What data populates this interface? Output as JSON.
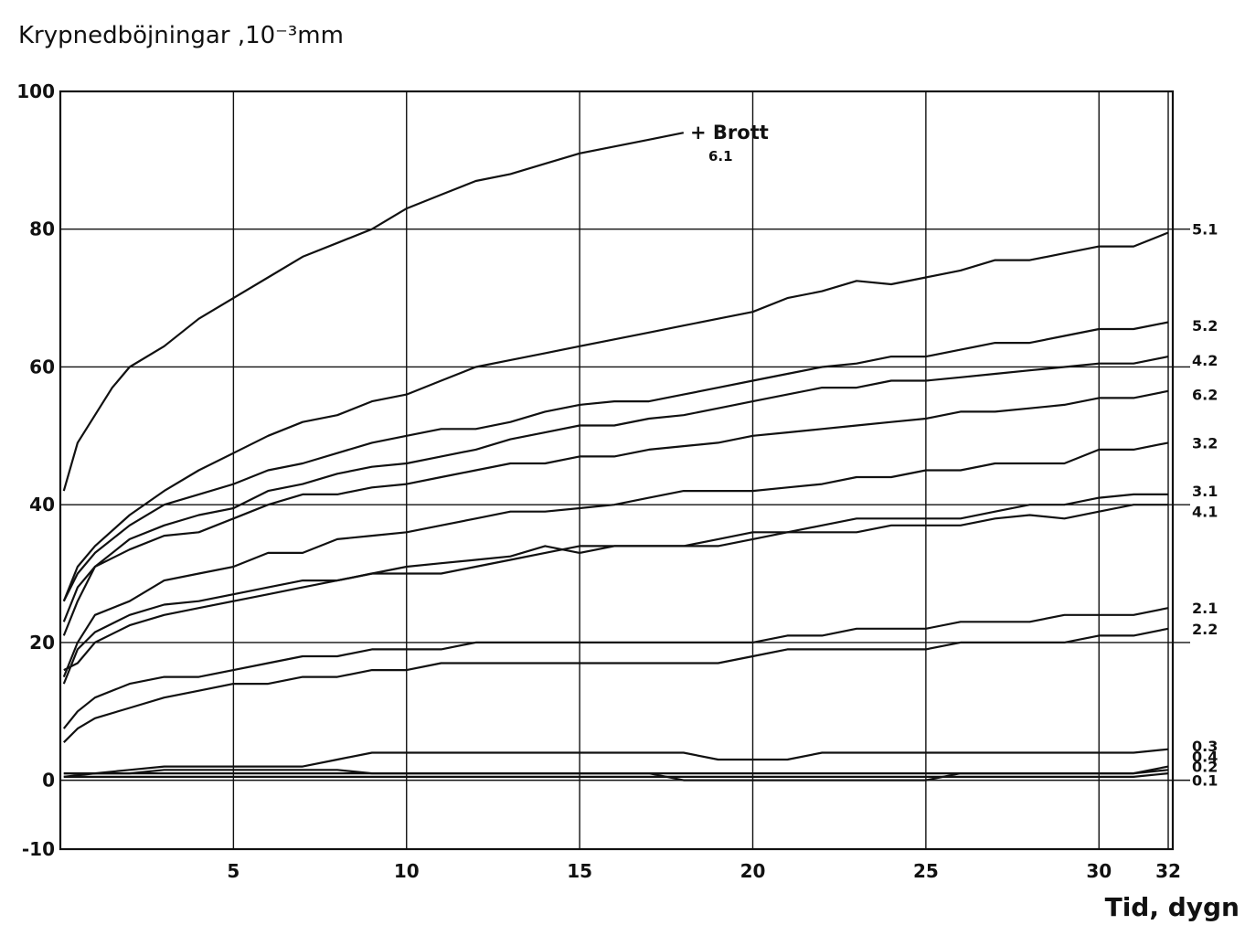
{
  "chart_data": {
    "type": "line",
    "title": "",
    "ylabel": "Krypnedböjningar ,10⁻³mm",
    "xlabel": "Tid, dygn",
    "xlim": [
      0,
      32
    ],
    "ylim": [
      -10,
      100
    ],
    "xticks": [
      5,
      10,
      15,
      20,
      25,
      30,
      32
    ],
    "yticks": [
      -10,
      0,
      20,
      40,
      60,
      80,
      100
    ],
    "grid": true,
    "legend": "labels at right edge",
    "annotation": {
      "text": "+ Brott",
      "sub": "6.1",
      "x": 18,
      "y": 94
    },
    "series": [
      {
        "name": "6.1",
        "label_y": null,
        "x": [
          0.1,
          0.5,
          1.0,
          1.5,
          2,
          3,
          4,
          5,
          6,
          7,
          8,
          9,
          10,
          11,
          12,
          13,
          14,
          15,
          16,
          17,
          18
        ],
        "y": [
          42,
          49,
          53,
          57,
          60,
          63,
          67,
          70,
          73,
          76,
          78,
          80,
          83,
          85,
          87,
          88,
          89.5,
          91,
          92,
          93,
          94
        ]
      },
      {
        "name": "5.1",
        "label_y": 80,
        "x": [
          0.1,
          0.5,
          1,
          2,
          3,
          4,
          5,
          6,
          7,
          8,
          9,
          10,
          11,
          12,
          13,
          14,
          15,
          16,
          17,
          18,
          19,
          20,
          21,
          22,
          23,
          24,
          25,
          26,
          27,
          28,
          29,
          30,
          31,
          32
        ],
        "y": [
          26,
          31,
          34,
          38.5,
          42,
          45,
          47.5,
          50,
          52,
          53,
          55,
          56,
          58,
          60,
          61,
          62,
          63,
          64,
          65,
          66,
          67,
          68,
          70,
          71,
          72.5,
          72,
          73,
          74,
          75.5,
          75.5,
          76.5,
          77.5,
          77.5,
          79.5
        ]
      },
      {
        "name": "5.2",
        "label_y": 66,
        "x": [
          0.1,
          0.5,
          1,
          2,
          3,
          4,
          5,
          6,
          7,
          8,
          9,
          10,
          11,
          12,
          13,
          14,
          15,
          16,
          17,
          18,
          19,
          20,
          21,
          22,
          23,
          24,
          25,
          26,
          27,
          28,
          29,
          30,
          31,
          32
        ],
        "y": [
          26,
          30,
          33,
          37,
          40,
          41.5,
          43,
          45,
          46,
          47.5,
          49,
          50,
          51,
          51,
          52,
          53.5,
          54.5,
          55,
          55,
          56,
          57,
          58,
          59,
          60,
          60.5,
          61.5,
          61.5,
          62.5,
          63.5,
          63.5,
          64.5,
          65.5,
          65.5,
          66.5
        ]
      },
      {
        "name": "4.2",
        "label_y": 61,
        "x": [
          0.1,
          0.5,
          1,
          2,
          3,
          4,
          5,
          6,
          7,
          8,
          9,
          10,
          11,
          12,
          13,
          14,
          15,
          16,
          17,
          18,
          19,
          20,
          21,
          22,
          23,
          24,
          25,
          26,
          27,
          28,
          29,
          30,
          31,
          32
        ],
        "y": [
          23,
          28,
          31,
          35,
          37,
          38.5,
          39.5,
          42,
          43,
          44.5,
          45.5,
          46,
          47,
          48,
          49.5,
          50.5,
          51.5,
          51.5,
          52.5,
          53,
          54,
          55,
          56,
          57,
          57,
          58,
          58,
          58.5,
          59,
          59.5,
          60,
          60.5,
          60.5,
          61.5
        ]
      },
      {
        "name": "6.2",
        "label_y": 56,
        "x": [
          0.1,
          0.5,
          1,
          2,
          3,
          4,
          5,
          6,
          7,
          8,
          9,
          10,
          11,
          12,
          13,
          14,
          15,
          16,
          17,
          18,
          19,
          20,
          21,
          22,
          23,
          24,
          25,
          26,
          27,
          28,
          29,
          30,
          31,
          32
        ],
        "y": [
          21,
          26,
          31,
          33.5,
          35.5,
          36,
          38,
          40,
          41.5,
          41.5,
          42.5,
          43,
          44,
          45,
          46,
          46,
          47,
          47,
          48,
          48.5,
          49,
          50,
          50.5,
          51,
          51.5,
          52,
          52.5,
          53.5,
          53.5,
          54,
          54.5,
          55.5,
          55.5,
          56.5
        ]
      },
      {
        "name": "3.2",
        "label_y": 49,
        "x": [
          0.1,
          0.5,
          1,
          2,
          3,
          4,
          5,
          6,
          7,
          8,
          9,
          10,
          11,
          12,
          13,
          14,
          15,
          16,
          17,
          18,
          19,
          20,
          21,
          22,
          23,
          24,
          25,
          26,
          27,
          28,
          29,
          30,
          31,
          32
        ],
        "y": [
          15,
          20,
          24,
          26,
          29,
          30,
          31,
          33,
          33,
          35,
          35.5,
          36,
          37,
          38,
          39,
          39,
          39.5,
          40,
          41,
          42,
          42,
          42,
          42.5,
          43,
          44,
          44,
          45,
          45,
          46,
          46,
          46,
          48,
          48,
          49
        ]
      },
      {
        "name": "3.1",
        "label_y": 42,
        "x": [
          0.1,
          0.5,
          1,
          2,
          3,
          4,
          5,
          6,
          7,
          8,
          9,
          10,
          11,
          12,
          13,
          14,
          15,
          16,
          17,
          18,
          19,
          20,
          21,
          22,
          23,
          24,
          25,
          26,
          27,
          28,
          29,
          30,
          31,
          32
        ],
        "y": [
          14,
          19,
          21.5,
          24,
          25.5,
          26,
          27,
          28,
          29,
          29,
          30,
          31,
          31.5,
          32,
          32.5,
          34,
          33,
          34,
          34,
          34,
          34,
          35,
          36,
          37,
          38,
          38,
          38,
          38,
          39,
          40,
          40,
          41,
          41.5,
          41.5
        ]
      },
      {
        "name": "4.1",
        "label_y": 39,
        "x": [
          0.1,
          0.5,
          1,
          2,
          3,
          4,
          5,
          6,
          7,
          8,
          9,
          10,
          11,
          12,
          13,
          14,
          15,
          16,
          17,
          18,
          19,
          20,
          21,
          22,
          23,
          24,
          25,
          26,
          27,
          28,
          29,
          30,
          31,
          32
        ],
        "y": [
          16,
          17,
          20,
          22.5,
          24,
          25,
          26,
          27,
          28,
          29,
          30,
          30,
          30,
          31,
          32,
          33,
          34,
          34,
          34,
          34,
          35,
          36,
          36,
          36,
          36,
          37,
          37,
          37,
          38,
          38.5,
          38,
          39,
          40,
          40
        ]
      },
      {
        "name": "2.1",
        "label_y": 25,
        "x": [
          0.1,
          0.5,
          1,
          2,
          3,
          4,
          5,
          6,
          7,
          8,
          9,
          10,
          11,
          12,
          13,
          14,
          15,
          16,
          17,
          18,
          19,
          20,
          21,
          22,
          23,
          24,
          25,
          26,
          27,
          28,
          29,
          30,
          31,
          32
        ],
        "y": [
          7.5,
          10,
          12,
          14,
          15,
          15,
          16,
          17,
          18,
          18,
          19,
          19,
          19,
          20,
          20,
          20,
          20,
          20,
          20,
          20,
          20,
          20,
          21,
          21,
          22,
          22,
          22,
          23,
          23,
          23,
          24,
          24,
          24,
          25
        ]
      },
      {
        "name": "2.2",
        "label_y": 22,
        "x": [
          0.1,
          0.5,
          1,
          2,
          3,
          4,
          5,
          6,
          7,
          8,
          9,
          10,
          11,
          12,
          13,
          14,
          15,
          16,
          17,
          18,
          19,
          20,
          21,
          22,
          23,
          24,
          25,
          26,
          27,
          28,
          29,
          30,
          31,
          32
        ],
        "y": [
          5.5,
          7.5,
          9,
          10.5,
          12,
          13,
          14,
          14,
          15,
          15,
          16,
          16,
          17,
          17,
          17,
          17,
          17,
          17,
          17,
          17,
          17,
          18,
          19,
          19,
          19,
          19,
          19,
          20,
          20,
          20,
          20,
          21,
          21,
          22
        ]
      },
      {
        "name": "0.3",
        "label_y": 5,
        "x": [
          0.1,
          1,
          2,
          3,
          4,
          5,
          6,
          7,
          8,
          9,
          10,
          11,
          12,
          13,
          14,
          15,
          16,
          17,
          18,
          19,
          20,
          21,
          22,
          23,
          24,
          25,
          26,
          27,
          28,
          29,
          30,
          31,
          32
        ],
        "y": [
          1,
          1,
          1.5,
          2,
          2,
          2,
          2,
          2,
          3,
          4,
          4,
          4,
          4,
          4,
          4,
          4,
          4,
          4,
          4,
          3,
          3,
          3,
          4,
          4,
          4,
          4,
          4,
          4,
          4,
          4,
          4,
          4,
          4.5
        ]
      },
      {
        "name": "0.4",
        "label_y": 3.5,
        "x": [
          0.1,
          1,
          2,
          3,
          4,
          5,
          6,
          7,
          8,
          9,
          10,
          11,
          12,
          13,
          14,
          15,
          16,
          17,
          18,
          19,
          20,
          21,
          22,
          23,
          24,
          25,
          26,
          27,
          28,
          29,
          30,
          31,
          32
        ],
        "y": [
          1,
          1,
          1,
          1.5,
          1.5,
          1.5,
          1.5,
          1.5,
          1.5,
          1,
          1,
          1,
          1,
          1,
          1,
          1,
          1,
          1,
          1,
          1,
          1,
          1,
          1,
          1,
          1,
          1,
          1,
          1,
          1,
          1,
          1,
          1,
          2
        ]
      },
      {
        "name": "0.2",
        "label_y": 2,
        "x": [
          0.1,
          1,
          2,
          3,
          4,
          5,
          6,
          7,
          8,
          9,
          10,
          11,
          12,
          13,
          14,
          15,
          16,
          17,
          18,
          19,
          20,
          21,
          22,
          23,
          24,
          25,
          26,
          27,
          28,
          29,
          30,
          31,
          32
        ],
        "y": [
          0.5,
          1,
          1,
          1,
          1,
          1,
          1,
          1,
          1,
          1,
          1,
          1,
          1,
          1,
          1,
          1,
          1,
          1,
          0,
          0,
          0,
          0,
          0,
          0,
          0,
          0,
          1,
          1,
          1,
          1,
          1,
          1,
          1.5
        ]
      },
      {
        "name": "0.1",
        "label_y": 0,
        "x": [
          0.1,
          1,
          2,
          3,
          4,
          5,
          6,
          7,
          8,
          9,
          10,
          11,
          12,
          13,
          14,
          15,
          16,
          17,
          18,
          19,
          20,
          21,
          22,
          23,
          24,
          25,
          26,
          27,
          28,
          29,
          30,
          31,
          32
        ],
        "y": [
          0.5,
          0.5,
          0.5,
          0.5,
          0.5,
          0.5,
          0.5,
          0.5,
          0.5,
          0.5,
          0.5,
          0.5,
          0.5,
          0.5,
          0.5,
          0.5,
          0.5,
          0.5,
          0.5,
          0.5,
          0.5,
          0.5,
          0.5,
          0.5,
          0.5,
          0.5,
          0.5,
          0.5,
          0.5,
          0.5,
          0.5,
          0.5,
          1
        ]
      }
    ]
  }
}
